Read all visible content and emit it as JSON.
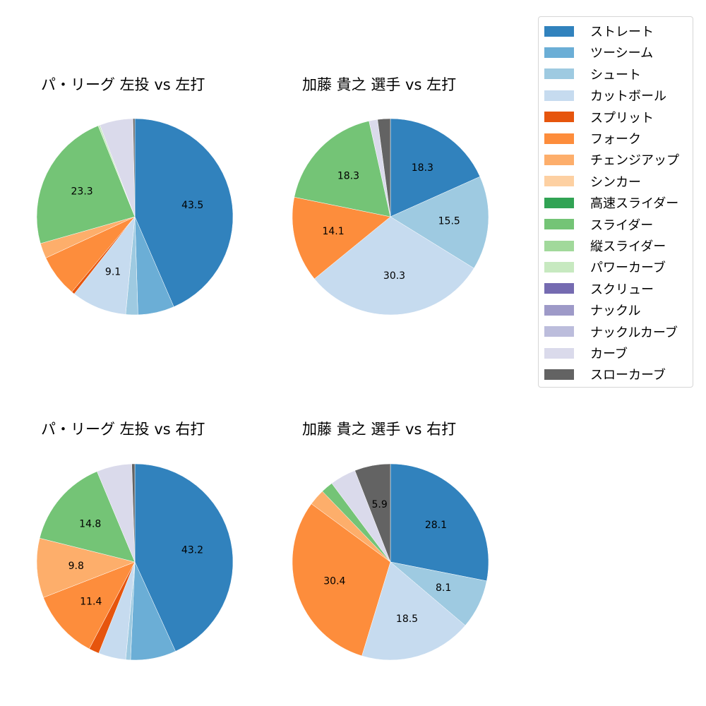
{
  "chart_data": [
    {
      "type": "pie",
      "title": "パ・リーグ 左投 vs 左打",
      "categories": [
        "ストレート",
        "ツーシーム",
        "シュート",
        "カットボール",
        "スプリット",
        "フォーク",
        "チェンジアップ",
        "スライダー",
        "パワーカーブ",
        "カーブ",
        "スローカーブ"
      ],
      "values": [
        43.5,
        6.0,
        2.0,
        9.1,
        0.5,
        7.0,
        2.5,
        23.3,
        0.3,
        5.5,
        0.3
      ],
      "labels_shown": [
        "43.5",
        "",
        "",
        "9.1",
        "",
        "",
        "",
        "23.3",
        "",
        "",
        ""
      ]
    },
    {
      "type": "pie",
      "title": "加藤 貴之 選手 vs 左打",
      "categories": [
        "ストレート",
        "シュート",
        "カットボール",
        "フォーク",
        "スライダー",
        "カーブ",
        "スローカーブ"
      ],
      "values": [
        18.3,
        15.5,
        30.3,
        14.1,
        18.3,
        1.4,
        2.1
      ],
      "labels_shown": [
        "18.3",
        "15.5",
        "30.3",
        "14.1",
        "18.3",
        "",
        ""
      ]
    },
    {
      "type": "pie",
      "title": "パ・リーグ 左投 vs 右打",
      "categories": [
        "ストレート",
        "ツーシーム",
        "シュート",
        "カットボール",
        "スプリット",
        "フォーク",
        "チェンジアップ",
        "スライダー",
        "カーブ",
        "スローカーブ"
      ],
      "values": [
        43.2,
        7.5,
        0.8,
        4.5,
        1.7,
        11.4,
        9.8,
        14.8,
        5.8,
        0.5
      ],
      "labels_shown": [
        "43.2",
        "",
        "",
        "",
        "",
        "11.4",
        "9.8",
        "14.8",
        "",
        ""
      ]
    },
    {
      "type": "pie",
      "title": "加藤 貴之 選手 vs 右打",
      "categories": [
        "ストレート",
        "シュート",
        "カットボール",
        "フォーク",
        "チェンジアップ",
        "スライダー",
        "カーブ",
        "スローカーブ"
      ],
      "values": [
        28.1,
        8.1,
        18.5,
        30.4,
        2.7,
        2.0,
        4.3,
        5.9
      ],
      "labels_shown": [
        "28.1",
        "8.1",
        "18.5",
        "30.4",
        "",
        "",
        "",
        "5.9"
      ]
    }
  ],
  "legend": {
    "position": "upper right",
    "items": [
      {
        "label": "ストレート",
        "color": "#3182bd"
      },
      {
        "label": "ツーシーム",
        "color": "#6baed6"
      },
      {
        "label": "シュート",
        "color": "#9ecae1"
      },
      {
        "label": "カットボール",
        "color": "#c6dbef"
      },
      {
        "label": "スプリット",
        "color": "#e6550d"
      },
      {
        "label": "フォーク",
        "color": "#fd8d3c"
      },
      {
        "label": "チェンジアップ",
        "color": "#fdae6b"
      },
      {
        "label": "シンカー",
        "color": "#fdd0a2"
      },
      {
        "label": "高速スライダー",
        "color": "#31a354"
      },
      {
        "label": "スライダー",
        "color": "#74c476"
      },
      {
        "label": "縦スライダー",
        "color": "#a1d99b"
      },
      {
        "label": "パワーカーブ",
        "color": "#c7e9c0"
      },
      {
        "label": "スクリュー",
        "color": "#756bb1"
      },
      {
        "label": "ナックル",
        "color": "#9e9ac8"
      },
      {
        "label": "ナックルカーブ",
        "color": "#bcbddc"
      },
      {
        "label": "カーブ",
        "color": "#dadaeb"
      },
      {
        "label": "スローカーブ",
        "color": "#636363"
      }
    ]
  }
}
